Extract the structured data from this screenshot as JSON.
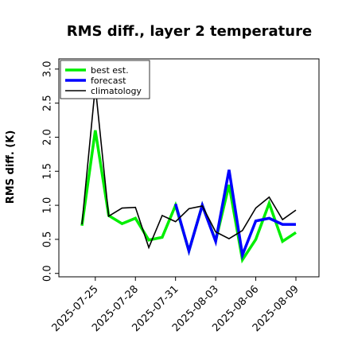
{
  "chart_data": {
    "type": "line",
    "title": "RMS diff., layer 2 temperature",
    "xlabel": "",
    "ylabel": "RMS diff. (K)",
    "ylim": [
      -0.05,
      3.15
    ],
    "yticks": [
      0.0,
      0.5,
      1.0,
      1.5,
      2.0,
      2.5,
      3.0
    ],
    "ytick_labels": [
      "0.0",
      "0.5",
      "1.0",
      "1.5",
      "2.0",
      "2.5",
      "3.0"
    ],
    "x_dates": [
      "2025-07-24",
      "2025-07-25",
      "2025-07-26",
      "2025-07-27",
      "2025-07-28",
      "2025-07-29",
      "2025-07-30",
      "2025-07-31",
      "2025-08-01",
      "2025-08-02",
      "2025-08-03",
      "2025-08-04",
      "2025-08-05",
      "2025-08-06",
      "2025-08-07",
      "2025-08-08",
      "2025-08-09"
    ],
    "xticks": [
      "2025-07-25",
      "2025-07-28",
      "2025-07-31",
      "2025-08-03",
      "2025-08-06",
      "2025-08-09"
    ],
    "highlight_tick": "2025-07-31",
    "highlight_color": "#228b22",
    "grid": false,
    "legend_position": "upper-left",
    "series": [
      {
        "name": "best est.",
        "color": "#00ee00",
        "width": 3.5,
        "values": [
          0.7,
          2.1,
          0.85,
          0.73,
          0.81,
          0.49,
          0.53,
          1.0,
          0.33,
          1.0,
          0.48,
          1.3,
          0.2,
          0.5,
          1.03,
          0.47,
          0.6
        ]
      },
      {
        "name": "forecast",
        "color": "#0000ff",
        "width": 3.5,
        "values": [
          null,
          null,
          null,
          null,
          null,
          null,
          null,
          1.02,
          0.33,
          1.0,
          0.47,
          1.52,
          0.27,
          0.77,
          0.81,
          0.72,
          0.72
        ]
      },
      {
        "name": "climatology",
        "color": "#000000",
        "width": 1.6,
        "values": [
          0.72,
          2.75,
          0.84,
          0.96,
          0.97,
          0.38,
          0.85,
          0.76,
          0.95,
          0.99,
          0.61,
          0.51,
          0.63,
          0.96,
          1.12,
          0.79,
          0.93
        ]
      }
    ]
  }
}
